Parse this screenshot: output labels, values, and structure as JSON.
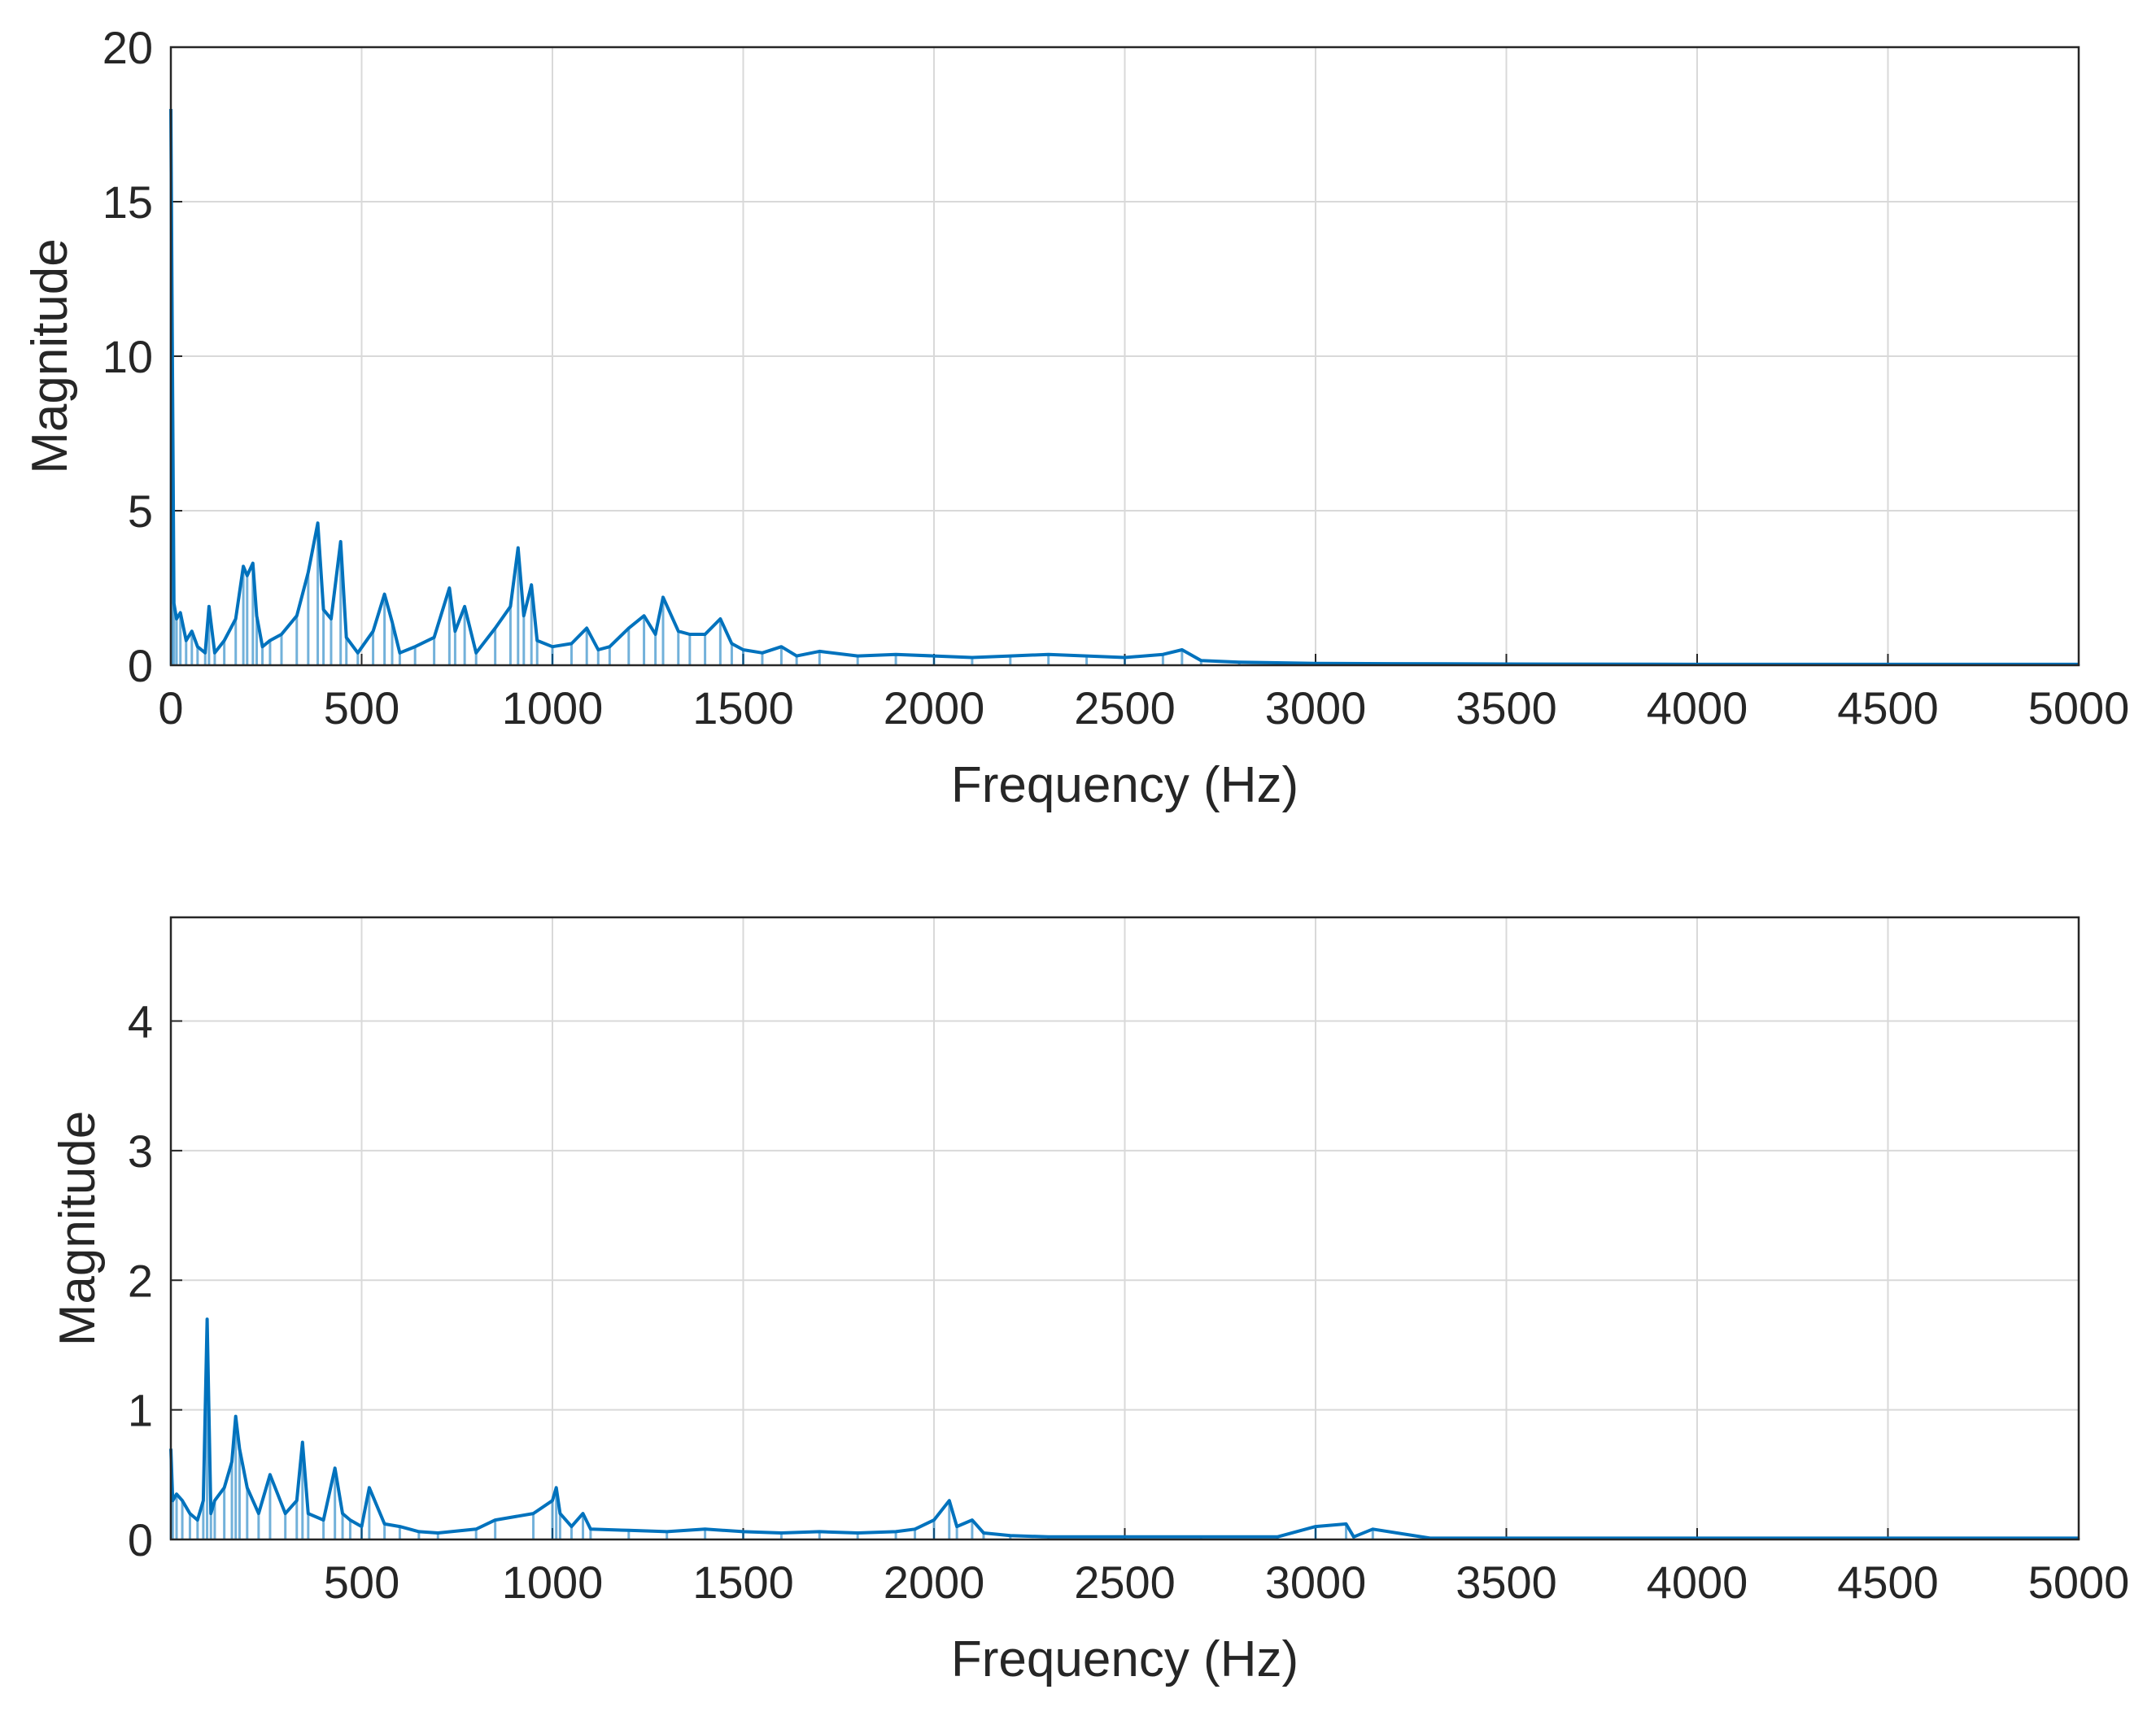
{
  "colors": {
    "line": "#0072BD",
    "grid": "#d9d9d9",
    "axes": "#262626",
    "background": "#ffffff"
  },
  "chart_data": [
    {
      "type": "line",
      "xlabel": "Frequency (Hz)",
      "ylabel": "Magnitude",
      "xlim": [
        0,
        5000
      ],
      "ylim": [
        0,
        20
      ],
      "grid": true,
      "xticks": [
        "0",
        "500",
        "1000",
        "1500",
        "2000",
        "2500",
        "3000",
        "3500",
        "4000",
        "4500",
        "5000"
      ],
      "yticks": [
        "0",
        "5",
        "10",
        "15",
        "20"
      ],
      "series": [
        {
          "x": [
            0,
            3,
            8,
            15,
            25,
            40,
            55,
            70,
            90,
            100,
            115,
            140,
            170,
            190,
            200,
            215,
            225,
            240,
            260,
            290,
            330,
            360,
            385,
            400,
            420,
            445,
            460,
            490,
            530,
            560,
            580,
            600,
            640,
            690,
            730,
            745,
            770,
            800,
            850,
            890,
            910,
            925,
            945,
            960,
            1000,
            1050,
            1090,
            1120,
            1150,
            1200,
            1240,
            1270,
            1290,
            1330,
            1360,
            1400,
            1440,
            1470,
            1500,
            1550,
            1600,
            1640,
            1700,
            1800,
            1900,
            2000,
            2100,
            2200,
            2300,
            2400,
            2500,
            2600,
            2650,
            2700,
            2800,
            2900,
            3000,
            3200,
            3500,
            4000,
            4500,
            5000
          ],
          "y": [
            18.0,
            12.0,
            2.0,
            1.5,
            1.7,
            0.8,
            1.1,
            0.6,
            0.4,
            1.9,
            0.4,
            0.8,
            1.5,
            3.2,
            2.9,
            3.3,
            1.6,
            0.6,
            0.8,
            1.0,
            1.6,
            3.0,
            4.6,
            1.8,
            1.5,
            4.0,
            0.9,
            0.4,
            1.1,
            2.3,
            1.4,
            0.4,
            0.6,
            0.9,
            2.5,
            1.1,
            1.9,
            0.4,
            1.2,
            1.9,
            3.8,
            1.6,
            2.6,
            0.8,
            0.6,
            0.7,
            1.2,
            0.5,
            0.6,
            1.2,
            1.6,
            1.0,
            2.2,
            1.1,
            1.0,
            1.0,
            1.5,
            0.7,
            0.5,
            0.4,
            0.6,
            0.3,
            0.45,
            0.3,
            0.35,
            0.3,
            0.25,
            0.3,
            0.35,
            0.3,
            0.25,
            0.35,
            0.5,
            0.15,
            0.1,
            0.08,
            0.06,
            0.05,
            0.04,
            0.03,
            0.03,
            0.03
          ]
        }
      ]
    },
    {
      "type": "line",
      "xlabel": "Frequency (Hz)",
      "ylabel": "Magnitude",
      "xlim": [
        0,
        5000
      ],
      "ylim": [
        0,
        4.8
      ],
      "grid": true,
      "xticks": [
        "500",
        "1000",
        "1500",
        "2000",
        "2500",
        "3000",
        "3500",
        "4000",
        "4500",
        "5000"
      ],
      "yticks": [
        "0",
        "1",
        "2",
        "3",
        "4"
      ],
      "series": [
        {
          "x": [
            0,
            5,
            15,
            30,
            50,
            70,
            85,
            95,
            105,
            115,
            140,
            160,
            170,
            180,
            200,
            230,
            260,
            300,
            330,
            345,
            360,
            400,
            430,
            450,
            470,
            500,
            520,
            560,
            600,
            650,
            700,
            800,
            850,
            950,
            1000,
            1010,
            1020,
            1050,
            1080,
            1100,
            1200,
            1300,
            1400,
            1500,
            1600,
            1700,
            1800,
            1900,
            1950,
            2000,
            2040,
            2060,
            2100,
            2130,
            2200,
            2300,
            2500,
            2700,
            2900,
            3000,
            3080,
            3100,
            3150,
            3300,
            3500,
            4000,
            4500,
            5000
          ],
          "y": [
            0.7,
            0.3,
            0.35,
            0.3,
            0.2,
            0.15,
            0.3,
            1.7,
            0.2,
            0.3,
            0.4,
            0.6,
            0.95,
            0.7,
            0.4,
            0.2,
            0.5,
            0.2,
            0.3,
            0.75,
            0.2,
            0.15,
            0.55,
            0.2,
            0.15,
            0.1,
            0.4,
            0.12,
            0.1,
            0.06,
            0.05,
            0.08,
            0.15,
            0.2,
            0.3,
            0.4,
            0.2,
            0.1,
            0.2,
            0.08,
            0.07,
            0.06,
            0.08,
            0.06,
            0.05,
            0.06,
            0.05,
            0.06,
            0.08,
            0.15,
            0.3,
            0.1,
            0.15,
            0.05,
            0.03,
            0.02,
            0.02,
            0.02,
            0.02,
            0.1,
            0.12,
            0.02,
            0.08,
            0.01,
            0.01,
            0.01,
            0.01,
            0.01
          ]
        }
      ]
    }
  ]
}
